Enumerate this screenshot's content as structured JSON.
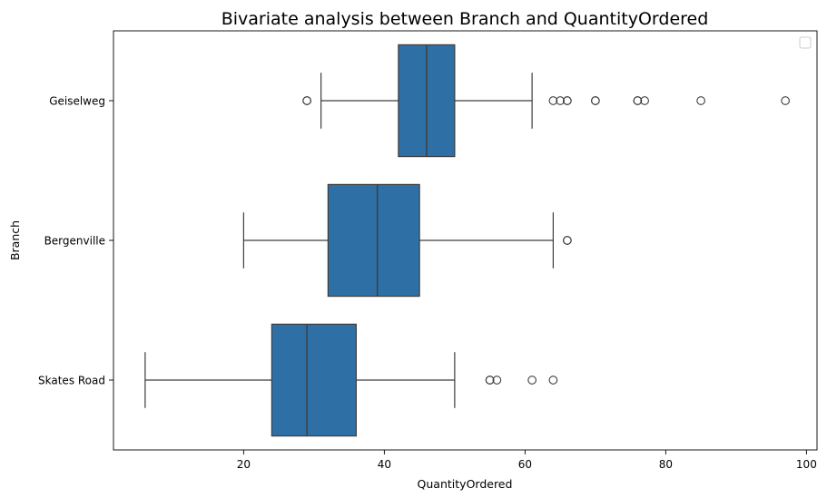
{
  "chart_data": {
    "type": "boxplot",
    "orientation": "horizontal",
    "title": "Bivariate analysis between Branch and QuantityOrdered",
    "xlabel": "QuantityOrdered",
    "ylabel": "Branch",
    "xlim": [
      1.5,
      101.5
    ],
    "xticks": [
      20,
      40,
      60,
      80,
      100
    ],
    "grid": false,
    "legend": "top-right (empty)",
    "box_color": "#2e6fa5",
    "categories": [
      "Geiselweg",
      "Bergenville",
      "Skates Road"
    ],
    "boxes": [
      {
        "category": "Geiselweg",
        "whisker_low": 31,
        "q1": 42,
        "median": 46,
        "q3": 50,
        "whisker_high": 61,
        "outliers": [
          29,
          29,
          64,
          65,
          66,
          66,
          70,
          70,
          76,
          76,
          77,
          85,
          97
        ]
      },
      {
        "category": "Bergenville",
        "whisker_low": 20,
        "q1": 32,
        "median": 39,
        "q3": 45,
        "whisker_high": 64,
        "outliers": [
          66,
          66
        ]
      },
      {
        "category": "Skates Road",
        "whisker_low": 6,
        "q1": 24,
        "median": 29,
        "q3": 36,
        "whisker_high": 50,
        "outliers": [
          55,
          55,
          56,
          61,
          64
        ]
      }
    ]
  }
}
